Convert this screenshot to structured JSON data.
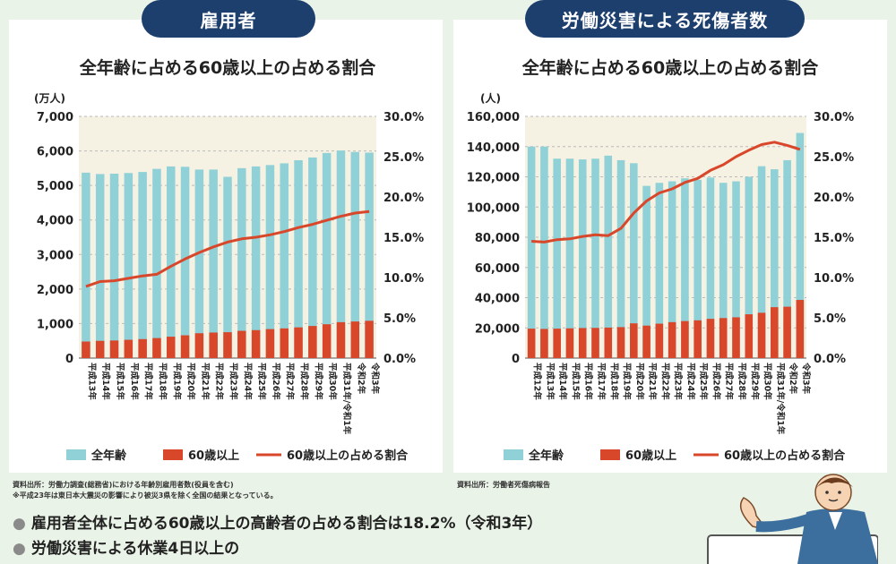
{
  "panels": {
    "left_tab": "雇用者",
    "right_tab": "労働災害による死傷者数"
  },
  "sources": {
    "left_line1": "資料出所：労働力調査(総務省)における年齢別雇用者数(役員を含む)",
    "left_line2": "※平成23年は東日本大震災の影響により被災3県を除く全国の結果となっている。",
    "right_line1": "資料出所：労働者死傷病報告"
  },
  "bullets": [
    "雇用者全体に占める60歳以上の高齢者の占める割合は18.2%（令和3年）",
    "労働災害による休業4日以上の"
  ],
  "colors": {
    "bar_all": "#8fd1d6",
    "bar_60": "#d9472b",
    "line": "#d9472b",
    "plot_bg": "#f5f1e3",
    "tab_bg": "#1d3f6e"
  },
  "chart_data": [
    {
      "type": "bar",
      "title": "全年齢に占める60歳以上の占める割合",
      "y_unit": "(万人)",
      "categories": [
        "平成13年",
        "平成14年",
        "平成15年",
        "平成16年",
        "平成17年",
        "平成18年",
        "平成19年",
        "平成20年",
        "平成21年",
        "平成22年",
        "平成23年",
        "平成24年",
        "平成25年",
        "平成26年",
        "平成27年",
        "平成28年",
        "平成29年",
        "平成30年",
        "平成31年/令和1年",
        "令和2年",
        "令和3年"
      ],
      "ylim": [
        0,
        7000
      ],
      "yticks": [
        "0",
        "1,000",
        "2,000",
        "3,000",
        "4,000",
        "5,000",
        "6,000",
        "7,000"
      ],
      "y2lim": [
        0,
        30
      ],
      "y2ticks": [
        "0.0%",
        "5.0%",
        "10.0%",
        "15.0%",
        "20.0%",
        "25.0%",
        "30.0%"
      ],
      "series": [
        {
          "name": "全年齢",
          "kind": "bar",
          "values": [
            5370,
            5330,
            5340,
            5360,
            5390,
            5480,
            5550,
            5540,
            5460,
            5460,
            5250,
            5500,
            5550,
            5590,
            5640,
            5730,
            5810,
            5940,
            6010,
            5970,
            5950
          ]
        },
        {
          "name": "60歳以上",
          "kind": "bar",
          "values": [
            480,
            500,
            510,
            530,
            550,
            580,
            620,
            660,
            720,
            740,
            750,
            790,
            810,
            840,
            860,
            890,
            930,
            980,
            1040,
            1060,
            1080
          ]
        },
        {
          "name": "60歳以上の占める割合",
          "kind": "line",
          "axis": "right",
          "values": [
            8.9,
            9.5,
            9.6,
            9.9,
            10.2,
            10.4,
            11.4,
            12.3,
            13.1,
            13.8,
            14.4,
            14.8,
            15.0,
            15.3,
            15.7,
            16.2,
            16.6,
            17.1,
            17.6,
            18.0,
            18.2
          ]
        }
      ],
      "legend": "bottom"
    },
    {
      "type": "bar",
      "title": "全年齢に占める60歳以上の占める割合",
      "y_unit": "(人)",
      "categories": [
        "平成12年",
        "平成13年",
        "平成14年",
        "平成15年",
        "平成16年",
        "平成17年",
        "平成18年",
        "平成19年",
        "平成20年",
        "平成21年",
        "平成22年",
        "平成23年",
        "平成24年",
        "平成25年",
        "平成26年",
        "平成27年",
        "平成28年",
        "平成29年",
        "平成30年",
        "平成31年/令和1年",
        "令和2年",
        "令和3年"
      ],
      "ylim": [
        0,
        160000
      ],
      "yticks": [
        "0",
        "20,000",
        "40,000",
        "60,000",
        "80,000",
        "100,000",
        "120,000",
        "140,000",
        "160,000"
      ],
      "y2lim": [
        0,
        30
      ],
      "y2ticks": [
        "0.0%",
        "5.0%",
        "10.0%",
        "15.0%",
        "20.0%",
        "25.0%",
        "30.0%"
      ],
      "series": [
        {
          "name": "全年齢",
          "kind": "bar",
          "values": [
            140000,
            140000,
            132000,
            132000,
            131500,
            132000,
            134000,
            131000,
            129000,
            114000,
            116000,
            117000,
            119000,
            118000,
            119500,
            116000,
            117000,
            120000,
            127000,
            125000,
            131000,
            149000
          ]
        },
        {
          "name": "60歳以上",
          "kind": "bar",
          "values": [
            19500,
            19300,
            19500,
            19700,
            19900,
            20000,
            20200,
            20500,
            23000,
            21500,
            22800,
            23800,
            24500,
            25000,
            26000,
            26500,
            27000,
            29000,
            30000,
            33700,
            34000,
            38500
          ]
        },
        {
          "name": "60歳以上の占める割合",
          "kind": "line",
          "axis": "right",
          "values": [
            14.5,
            14.4,
            14.7,
            14.8,
            15.1,
            15.3,
            15.2,
            16.1,
            18.0,
            19.5,
            20.5,
            21.0,
            21.8,
            22.3,
            23.3,
            24.0,
            25.0,
            25.8,
            26.5,
            26.8,
            26.4,
            25.9
          ]
        }
      ],
      "legend": "bottom"
    }
  ]
}
